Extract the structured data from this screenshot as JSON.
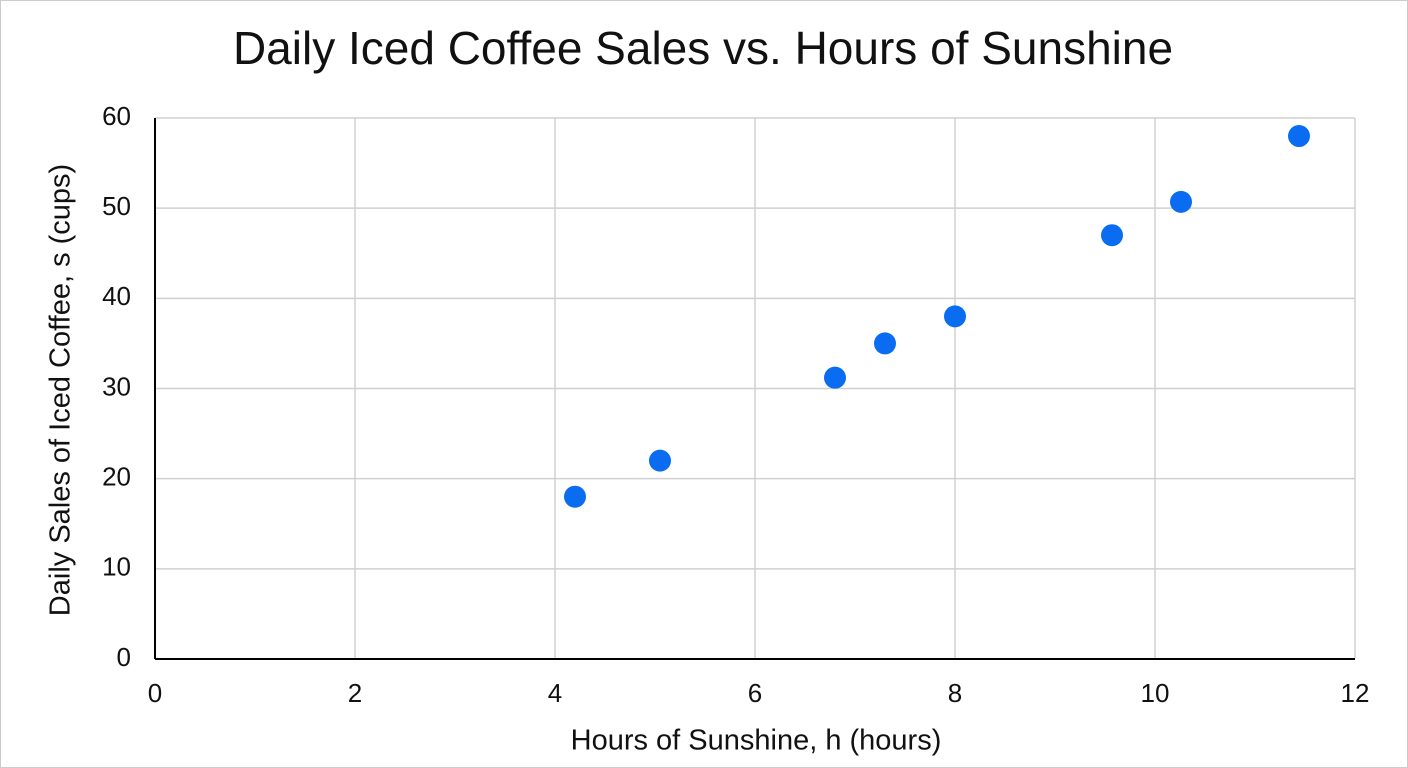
{
  "chart_data": {
    "type": "scatter",
    "title": "Daily Iced Coffee Sales vs. Hours of Sunshine",
    "x_label": "Hours of Sunshine, h (hours)",
    "y_label": "Daily Sales of Iced Coffee, s (cups)",
    "x": [
      4.2,
      5.05,
      6.8,
      7.3,
      8.0,
      9.57,
      10.26,
      11.44
    ],
    "series": [
      {
        "name": "Daily Sales",
        "color": "#0a6cf0",
        "values": [
          18,
          22,
          31.2,
          35,
          38,
          47,
          50.7,
          58
        ]
      }
    ],
    "xlim": [
      0,
      12
    ],
    "xticks": [
      0,
      2,
      4,
      6,
      8,
      10,
      12
    ],
    "ylim": [
      0,
      60
    ],
    "yticks": [
      0,
      10,
      20,
      30,
      40,
      50,
      60
    ],
    "grid": true
  }
}
